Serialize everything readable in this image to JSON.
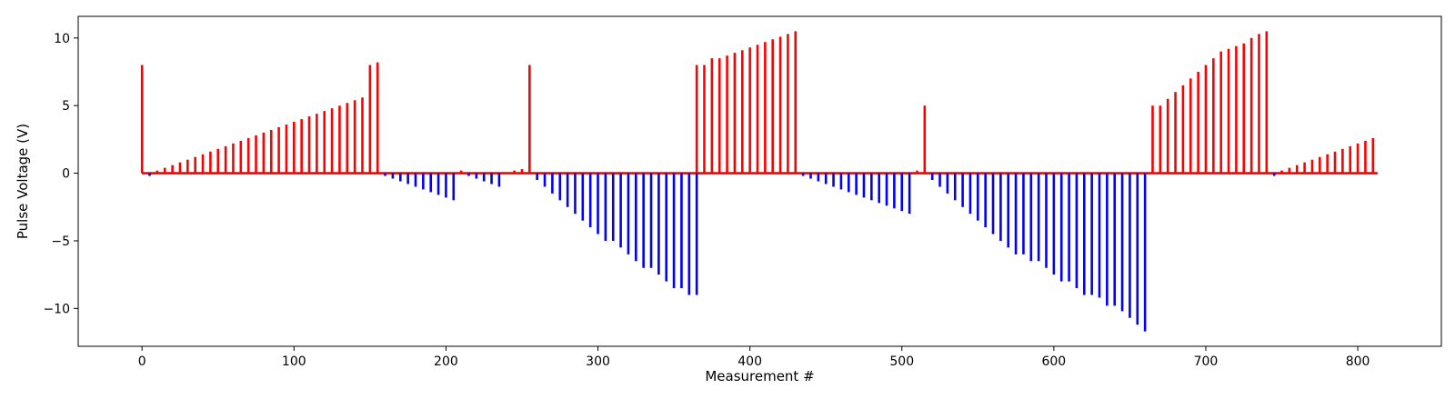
{
  "chart_data": {
    "type": "bar",
    "title": "",
    "xlabel": "Measurement #",
    "ylabel": "Pulse Voltage (V)",
    "xlim": [
      -42,
      855
    ],
    "ylim": [
      -12.8,
      11.6
    ],
    "xticks": [
      0,
      100,
      200,
      300,
      400,
      500,
      600,
      700,
      800
    ],
    "yticks": [
      -10,
      -5,
      0,
      5,
      10
    ],
    "grid": false,
    "legend": "none",
    "baseline": {
      "x_start": 0,
      "x_end": 813
    },
    "colors": {
      "positive": "#ff0000",
      "negative": "#0000ff"
    },
    "series": [
      {
        "color": "#ff0000",
        "points": [
          [
            0,
            8.0
          ],
          [
            10,
            0.2
          ],
          [
            15,
            0.4
          ],
          [
            20,
            0.6
          ],
          [
            25,
            0.8
          ],
          [
            30,
            1.0
          ],
          [
            35,
            1.2
          ],
          [
            40,
            1.4
          ],
          [
            45,
            1.6
          ],
          [
            50,
            1.8
          ],
          [
            55,
            2.0
          ],
          [
            60,
            2.2
          ],
          [
            65,
            2.4
          ],
          [
            70,
            2.6
          ],
          [
            75,
            2.8
          ],
          [
            80,
            3.0
          ],
          [
            85,
            3.2
          ],
          [
            90,
            3.4
          ],
          [
            95,
            3.6
          ],
          [
            100,
            3.8
          ],
          [
            105,
            4.0
          ],
          [
            110,
            4.2
          ],
          [
            115,
            4.4
          ],
          [
            120,
            4.6
          ],
          [
            125,
            4.8
          ],
          [
            130,
            5.0
          ],
          [
            135,
            5.2
          ],
          [
            140,
            5.4
          ],
          [
            145,
            5.6
          ],
          [
            150,
            8.0
          ],
          [
            155,
            8.2
          ],
          [
            210,
            0.2
          ],
          [
            245,
            0.2
          ],
          [
            250,
            0.3
          ],
          [
            255,
            8.0
          ],
          [
            365,
            8.0
          ],
          [
            370,
            8.0
          ],
          [
            375,
            8.5
          ],
          [
            380,
            8.5
          ],
          [
            385,
            8.7
          ],
          [
            390,
            8.9
          ],
          [
            395,
            9.1
          ],
          [
            400,
            9.3
          ],
          [
            405,
            9.5
          ],
          [
            410,
            9.7
          ],
          [
            415,
            9.9
          ],
          [
            420,
            10.1
          ],
          [
            425,
            10.3
          ],
          [
            430,
            10.5
          ],
          [
            510,
            0.2
          ],
          [
            515,
            5.0
          ],
          [
            665,
            5.0
          ],
          [
            670,
            5.0
          ],
          [
            675,
            5.5
          ],
          [
            680,
            6.0
          ],
          [
            685,
            6.5
          ],
          [
            690,
            7.0
          ],
          [
            695,
            7.5
          ],
          [
            700,
            8.0
          ],
          [
            705,
            8.5
          ],
          [
            710,
            9.0
          ],
          [
            715,
            9.2
          ],
          [
            720,
            9.4
          ],
          [
            725,
            9.6
          ],
          [
            730,
            10.0
          ],
          [
            735,
            10.3
          ],
          [
            740,
            10.5
          ],
          [
            750,
            0.2
          ],
          [
            755,
            0.4
          ],
          [
            760,
            0.6
          ],
          [
            765,
            0.8
          ],
          [
            770,
            1.0
          ],
          [
            775,
            1.2
          ],
          [
            780,
            1.4
          ],
          [
            785,
            1.6
          ],
          [
            790,
            1.8
          ],
          [
            795,
            2.0
          ],
          [
            800,
            2.2
          ],
          [
            805,
            2.4
          ],
          [
            810,
            2.6
          ]
        ]
      },
      {
        "color": "#0000ff",
        "points": [
          [
            5,
            -0.2
          ],
          [
            160,
            -0.2
          ],
          [
            165,
            -0.4
          ],
          [
            170,
            -0.6
          ],
          [
            175,
            -0.8
          ],
          [
            180,
            -1.0
          ],
          [
            185,
            -1.2
          ],
          [
            190,
            -1.4
          ],
          [
            195,
            -1.6
          ],
          [
            200,
            -1.8
          ],
          [
            205,
            -2.0
          ],
          [
            215,
            -0.2
          ],
          [
            220,
            -0.4
          ],
          [
            225,
            -0.6
          ],
          [
            230,
            -0.8
          ],
          [
            235,
            -1.0
          ],
          [
            260,
            -0.5
          ],
          [
            265,
            -1.0
          ],
          [
            270,
            -1.5
          ],
          [
            275,
            -2.0
          ],
          [
            280,
            -2.5
          ],
          [
            285,
            -3.0
          ],
          [
            290,
            -3.5
          ],
          [
            295,
            -4.0
          ],
          [
            300,
            -4.5
          ],
          [
            305,
            -5.0
          ],
          [
            310,
            -5.0
          ],
          [
            315,
            -5.5
          ],
          [
            320,
            -6.0
          ],
          [
            325,
            -6.5
          ],
          [
            330,
            -7.0
          ],
          [
            335,
            -7.0
          ],
          [
            340,
            -7.5
          ],
          [
            345,
            -8.0
          ],
          [
            350,
            -8.5
          ],
          [
            355,
            -8.5
          ],
          [
            360,
            -9.0
          ],
          [
            365,
            -9.0
          ],
          [
            435,
            -0.2
          ],
          [
            440,
            -0.4
          ],
          [
            445,
            -0.6
          ],
          [
            450,
            -0.8
          ],
          [
            455,
            -1.0
          ],
          [
            460,
            -1.2
          ],
          [
            465,
            -1.4
          ],
          [
            470,
            -1.6
          ],
          [
            475,
            -1.8
          ],
          [
            480,
            -2.0
          ],
          [
            485,
            -2.2
          ],
          [
            490,
            -2.4
          ],
          [
            495,
            -2.6
          ],
          [
            500,
            -2.8
          ],
          [
            505,
            -3.0
          ],
          [
            520,
            -0.5
          ],
          [
            525,
            -1.0
          ],
          [
            530,
            -1.5
          ],
          [
            535,
            -2.0
          ],
          [
            540,
            -2.5
          ],
          [
            545,
            -3.0
          ],
          [
            550,
            -3.5
          ],
          [
            555,
            -4.0
          ],
          [
            560,
            -4.5
          ],
          [
            565,
            -5.0
          ],
          [
            570,
            -5.5
          ],
          [
            575,
            -6.0
          ],
          [
            580,
            -6.0
          ],
          [
            585,
            -6.5
          ],
          [
            590,
            -6.5
          ],
          [
            595,
            -7.0
          ],
          [
            600,
            -7.5
          ],
          [
            605,
            -8.0
          ],
          [
            610,
            -8.0
          ],
          [
            615,
            -8.5
          ],
          [
            620,
            -9.0
          ],
          [
            625,
            -9.0
          ],
          [
            630,
            -9.2
          ],
          [
            635,
            -9.8
          ],
          [
            640,
            -9.8
          ],
          [
            645,
            -10.2
          ],
          [
            650,
            -10.7
          ],
          [
            655,
            -11.2
          ],
          [
            660,
            -11.7
          ],
          [
            745,
            -0.2
          ]
        ]
      }
    ]
  }
}
